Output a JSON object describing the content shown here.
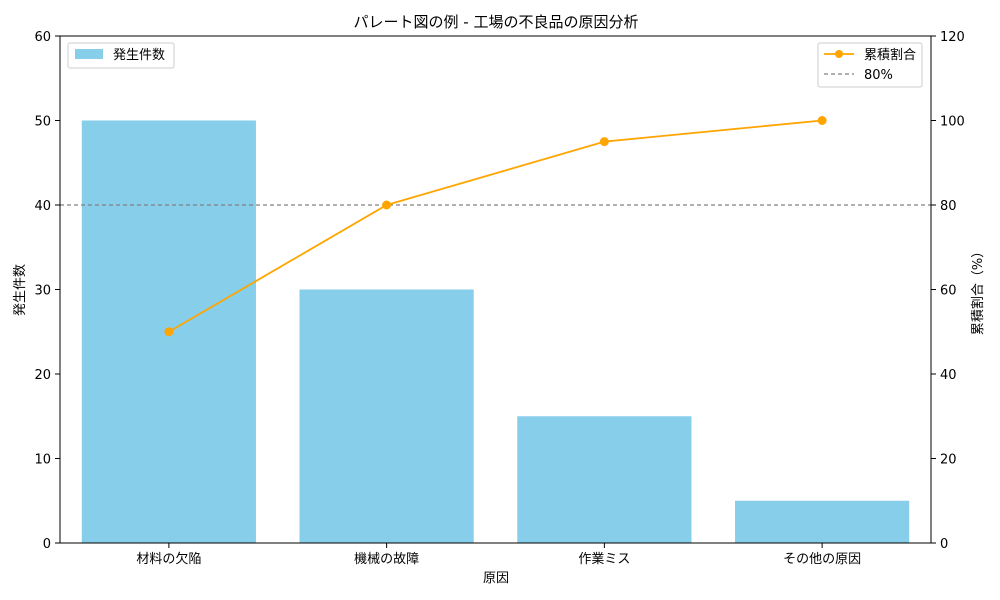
{
  "chart_data": {
    "type": "bar",
    "title": "パレート図の例 - 工場の不良品の原因分析",
    "xlabel": "原因",
    "ylabel": "発生件数",
    "y2label": "累積割合（%）",
    "categories": [
      "材料の欠陥",
      "機械の故障",
      "作業ミス",
      "その他の原因"
    ],
    "ylim": [
      0,
      60
    ],
    "y2lim": [
      0,
      120
    ],
    "yticks": [
      0,
      10,
      20,
      30,
      40,
      50,
      60
    ],
    "y2ticks": [
      0,
      20,
      40,
      60,
      80,
      100,
      120
    ],
    "series": [
      {
        "name": "発生件数",
        "type": "bar",
        "axis": "left",
        "color": "#87ceeb",
        "values": [
          50,
          30,
          15,
          5
        ]
      },
      {
        "name": "累積割合",
        "type": "line",
        "axis": "right",
        "color": "#ffa500",
        "marker": "circle",
        "values": [
          50,
          80,
          95,
          100
        ]
      }
    ],
    "reference_line": {
      "name": "80%",
      "axis": "right",
      "value": 80,
      "color": "#808080",
      "style": "dashed"
    },
    "legends": {
      "bars": "top-left",
      "lines": "top-right"
    },
    "grid": false
  }
}
